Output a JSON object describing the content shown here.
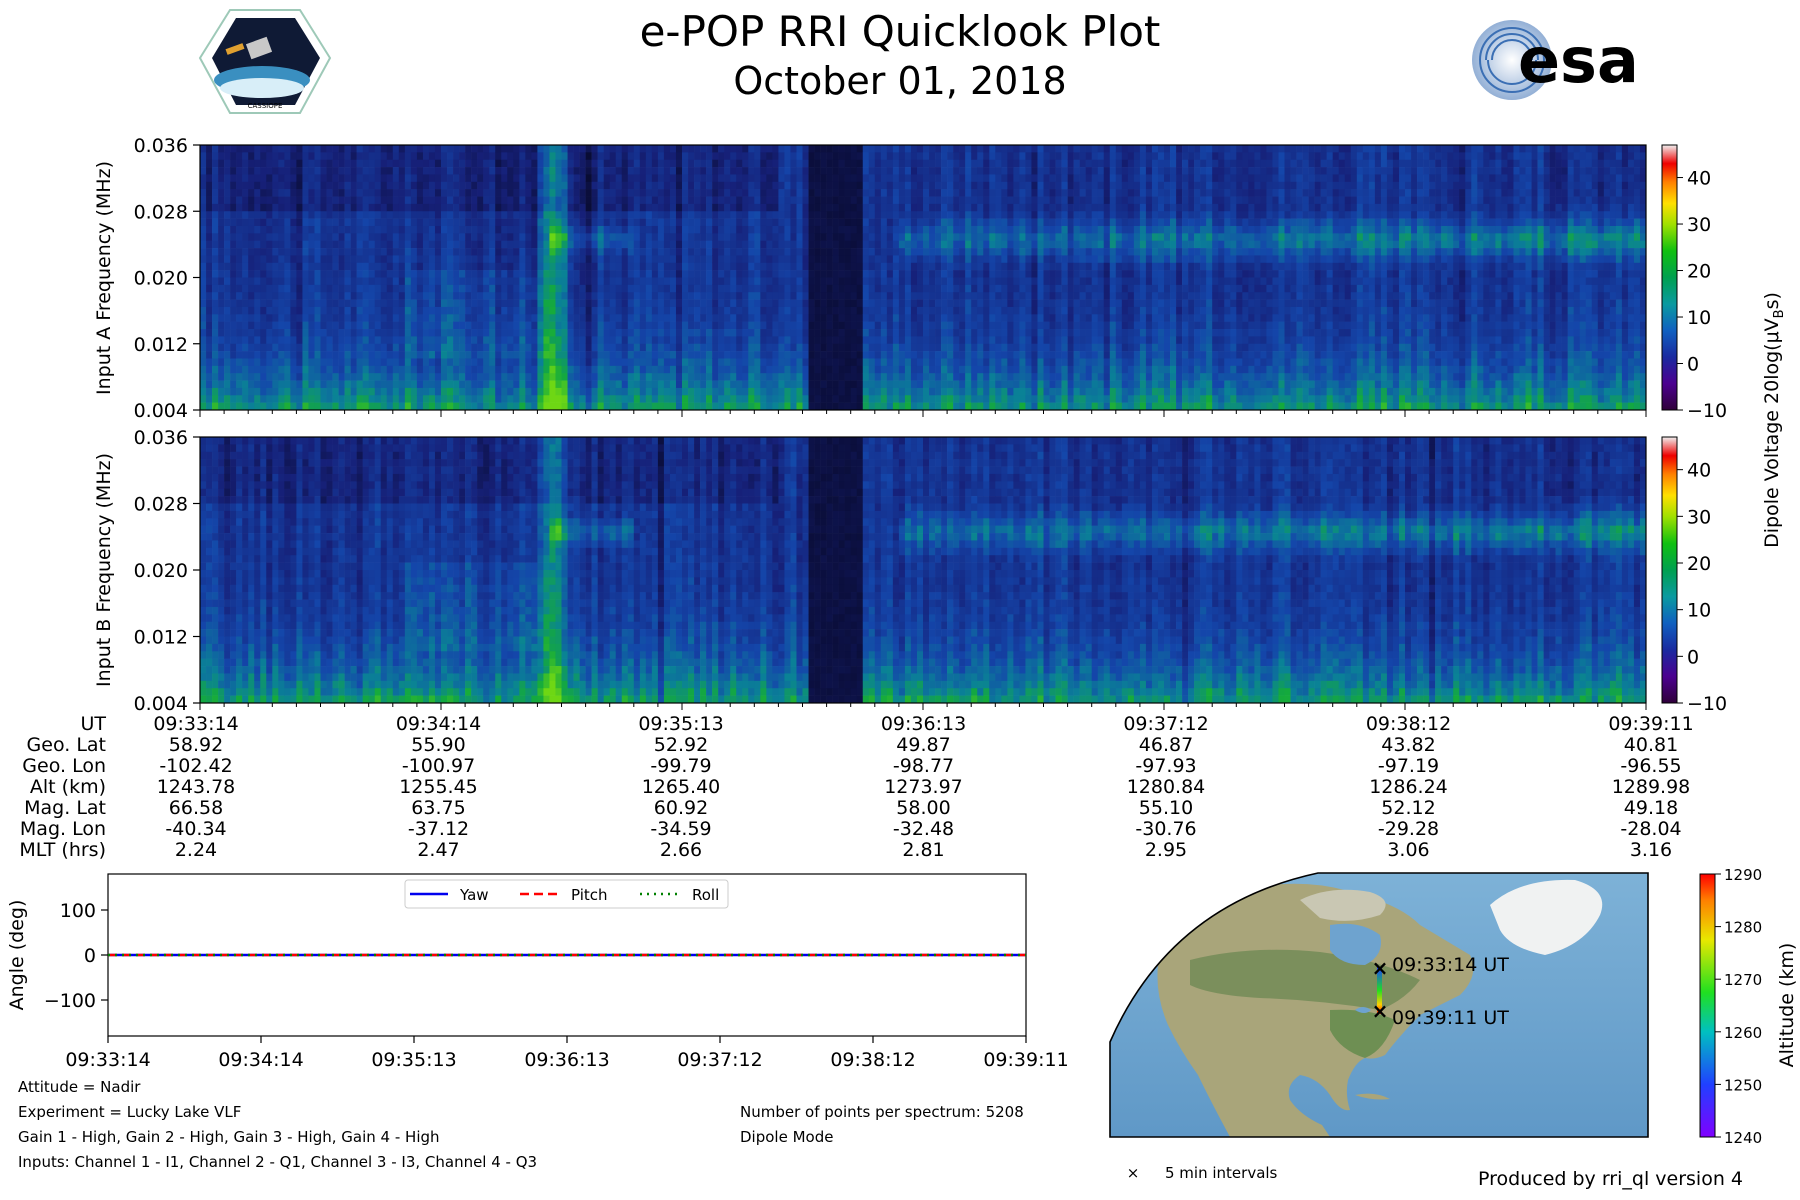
{
  "header": {
    "title": "e-POP RRI Quicklook Plot",
    "date": "October 01, 2018",
    "left_logo_text": "CASSIOPE",
    "right_logo_text": "esa"
  },
  "colors": {
    "yaw": "#0000ee",
    "pitch": "#ff0000",
    "roll": "#008000",
    "spectrogram_low": "#1b1f8a",
    "spectrogram_high": "#00c000"
  },
  "chart_data": [
    {
      "id": "input-a",
      "type": "heatmap",
      "ylabel": "Input A Frequency (MHz)",
      "yticks": [
        "0.004",
        "0.012",
        "0.020",
        "0.028",
        "0.036"
      ],
      "ylim": [
        0.004,
        0.036
      ],
      "x_range": [
        "09:33:14",
        "09:39:11"
      ],
      "features": {
        "data_gap": [
          0.42,
          0.455
        ],
        "band_center_mhz": 0.025,
        "band_start": 0.48,
        "bright_bursts": [
          0.235,
          0.245,
          0.25
        ]
      }
    },
    {
      "id": "input-b",
      "type": "heatmap",
      "ylabel": "Input B Frequency (MHz)",
      "yticks": [
        "0.004",
        "0.012",
        "0.020",
        "0.028",
        "0.036"
      ],
      "ylim": [
        0.004,
        0.036
      ],
      "x_range": [
        "09:33:14",
        "09:39:11"
      ]
    },
    {
      "id": "colorbar-voltage",
      "type": "colorbar",
      "label": "Dipole Voltage 20log(μV",
      "label_sub": "B",
      "label_end": "s)",
      "ticks": [
        "−10",
        "0",
        "10",
        "20",
        "30",
        "40"
      ],
      "range": [
        -10,
        47
      ]
    },
    {
      "id": "attitude",
      "type": "line",
      "ylabel": "Angle (deg)",
      "yticks": [
        "100",
        "0",
        "−100"
      ],
      "ylim": [
        -180,
        180
      ],
      "xticks": [
        "09:33:14",
        "09:34:14",
        "09:35:13",
        "09:36:13",
        "09:37:12",
        "09:38:12",
        "09:39:11"
      ],
      "series": [
        {
          "name": "Yaw",
          "values": [
            0,
            0,
            0,
            0,
            0,
            0,
            0
          ]
        },
        {
          "name": "Pitch",
          "values": [
            0,
            0,
            0,
            0,
            0,
            0,
            0
          ]
        },
        {
          "name": "Roll",
          "values": [
            0,
            0,
            0,
            0,
            0,
            0,
            0
          ]
        }
      ],
      "legend": "top-center"
    },
    {
      "id": "map",
      "type": "map",
      "annotations": [
        "09:33:14 UT",
        "09:39:11 UT"
      ],
      "legend_label": "5 min intervals",
      "legend_marker": "×",
      "colorbar_label": "Altitude (km)",
      "colorbar_ticks": [
        "1240",
        "1250",
        "1260",
        "1270",
        "1280",
        "1290"
      ],
      "colorbar_range": [
        1240,
        1290
      ]
    }
  ],
  "ephemeris": {
    "labels": [
      "UT",
      "Geo. Lat",
      "Geo. Lon",
      "Alt (km)",
      "Mag. Lat",
      "Mag. Lon",
      "MLT (hrs)"
    ],
    "columns": [
      [
        "09:33:14",
        "58.92",
        "-102.42",
        "1243.78",
        "66.58",
        "-40.34",
        "2.24"
      ],
      [
        "09:34:14",
        "55.90",
        "-100.97",
        "1255.45",
        "63.75",
        "-37.12",
        "2.47"
      ],
      [
        "09:35:13",
        "52.92",
        "-99.79",
        "1265.40",
        "60.92",
        "-34.59",
        "2.66"
      ],
      [
        "09:36:13",
        "49.87",
        "-98.77",
        "1273.97",
        "58.00",
        "-32.48",
        "2.81"
      ],
      [
        "09:37:12",
        "46.87",
        "-97.93",
        "1280.84",
        "55.10",
        "-30.76",
        "2.95"
      ],
      [
        "09:38:12",
        "43.82",
        "-97.19",
        "1286.24",
        "52.12",
        "-29.28",
        "3.06"
      ],
      [
        "09:39:11",
        "40.81",
        "-96.55",
        "1289.98",
        "49.18",
        "-28.04",
        "3.16"
      ]
    ]
  },
  "notes": {
    "attitude": "Attitude = Nadir",
    "experiment": "Experiment = Lucky Lake VLF",
    "gains": "Gain 1 - High, Gain 2 - High, Gain 3 - High, Gain 4 - High",
    "inputs": "Inputs: Channel 1 - I1, Channel 2 - Q1, Channel 3 - I3, Channel 4 - Q3",
    "points": "Number of points per spectrum: 5208",
    "mode": "Dipole Mode",
    "produced": "Produced by rri_ql version 4"
  }
}
